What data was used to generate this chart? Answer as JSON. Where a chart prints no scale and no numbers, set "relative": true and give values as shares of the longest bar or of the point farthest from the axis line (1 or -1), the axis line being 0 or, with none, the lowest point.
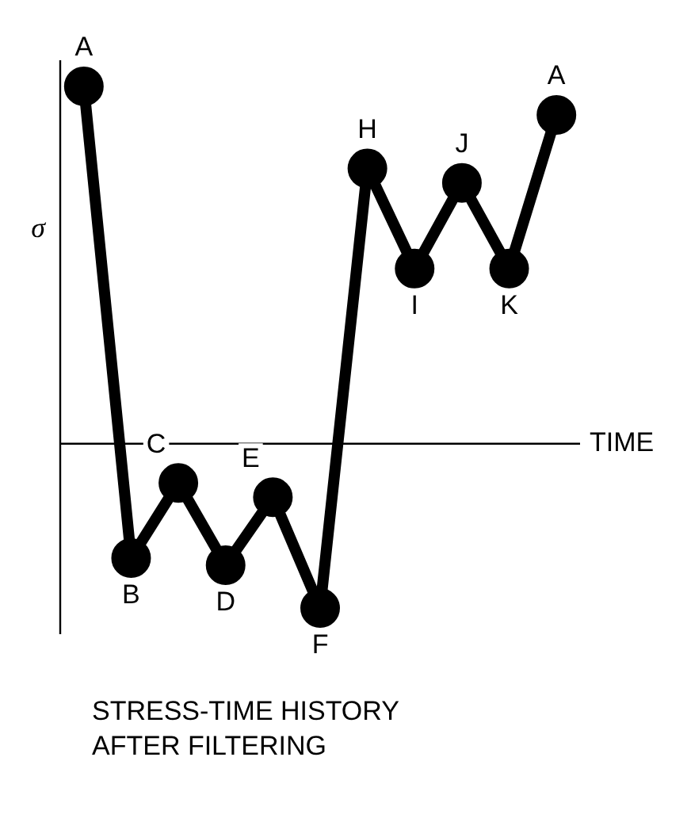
{
  "chart_data": {
    "type": "line",
    "relative": true,
    "xlabel": "TIME",
    "ylabel": "σ",
    "categories": [
      "A",
      "B",
      "C",
      "D",
      "E",
      "F",
      "H",
      "I",
      "J",
      "K",
      "A"
    ],
    "series": [
      {
        "color": "#000000",
        "values": [
          1,
          -0.32,
          -0.11,
          -0.34,
          -0.15,
          -0.46,
          0.77,
          0.49,
          0.73,
          0.49,
          0.92
        ]
      }
    ],
    "marker": "circle",
    "line_style": "solid",
    "grid": false,
    "legend": false,
    "annotations": [
      "STRESS-TIME HISTORY\nAFTER FILTERING"
    ]
  }
}
